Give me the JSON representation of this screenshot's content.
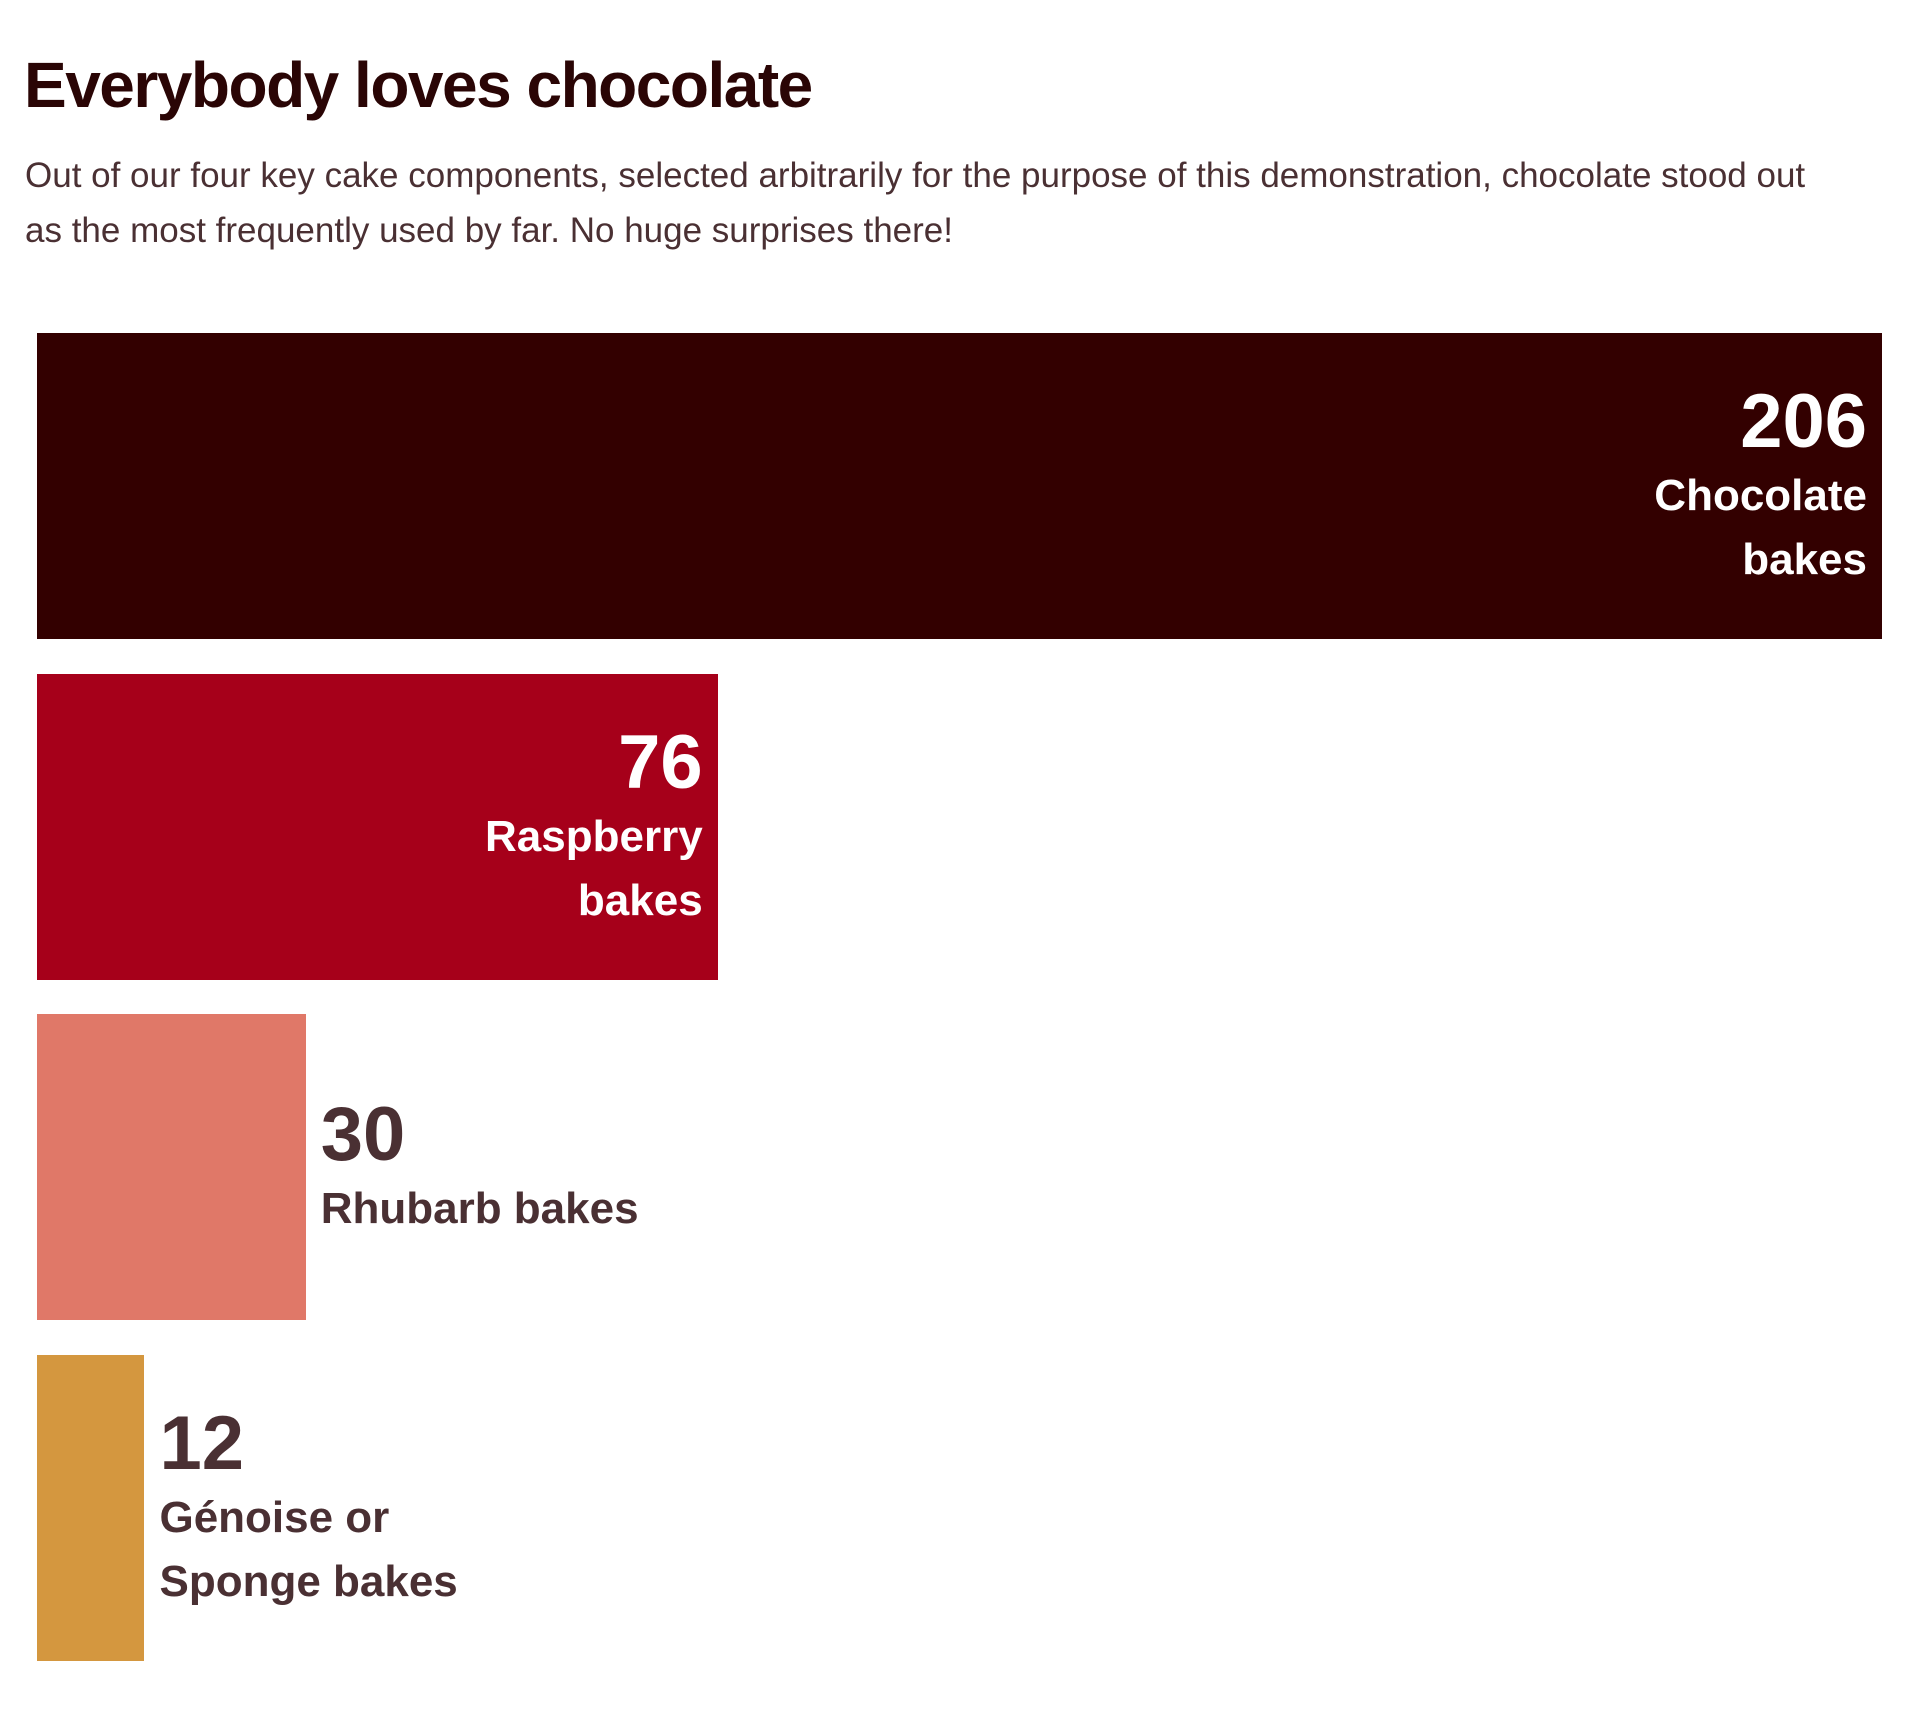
{
  "chart_data": {
    "type": "bar",
    "orientation": "horizontal",
    "title": "Everybody loves chocolate",
    "subtitle": "Out of our four key cake components, selected arbitrarily for the purpose of this demonstration, chocolate stood out as the most frequently used by far. No huge surprises there!",
    "categories": [
      "Chocolate\nbakes",
      "Raspberry\nbakes",
      "Rhubarb bakes",
      "Génoise or\nSponge bakes"
    ],
    "values": [
      206,
      76,
      30,
      12
    ],
    "colors": [
      "#330000",
      "#a6001a",
      "#e07868",
      "#d4973f"
    ],
    "xlim": [
      0,
      206
    ],
    "grid": false,
    "axes_visible": false
  }
}
